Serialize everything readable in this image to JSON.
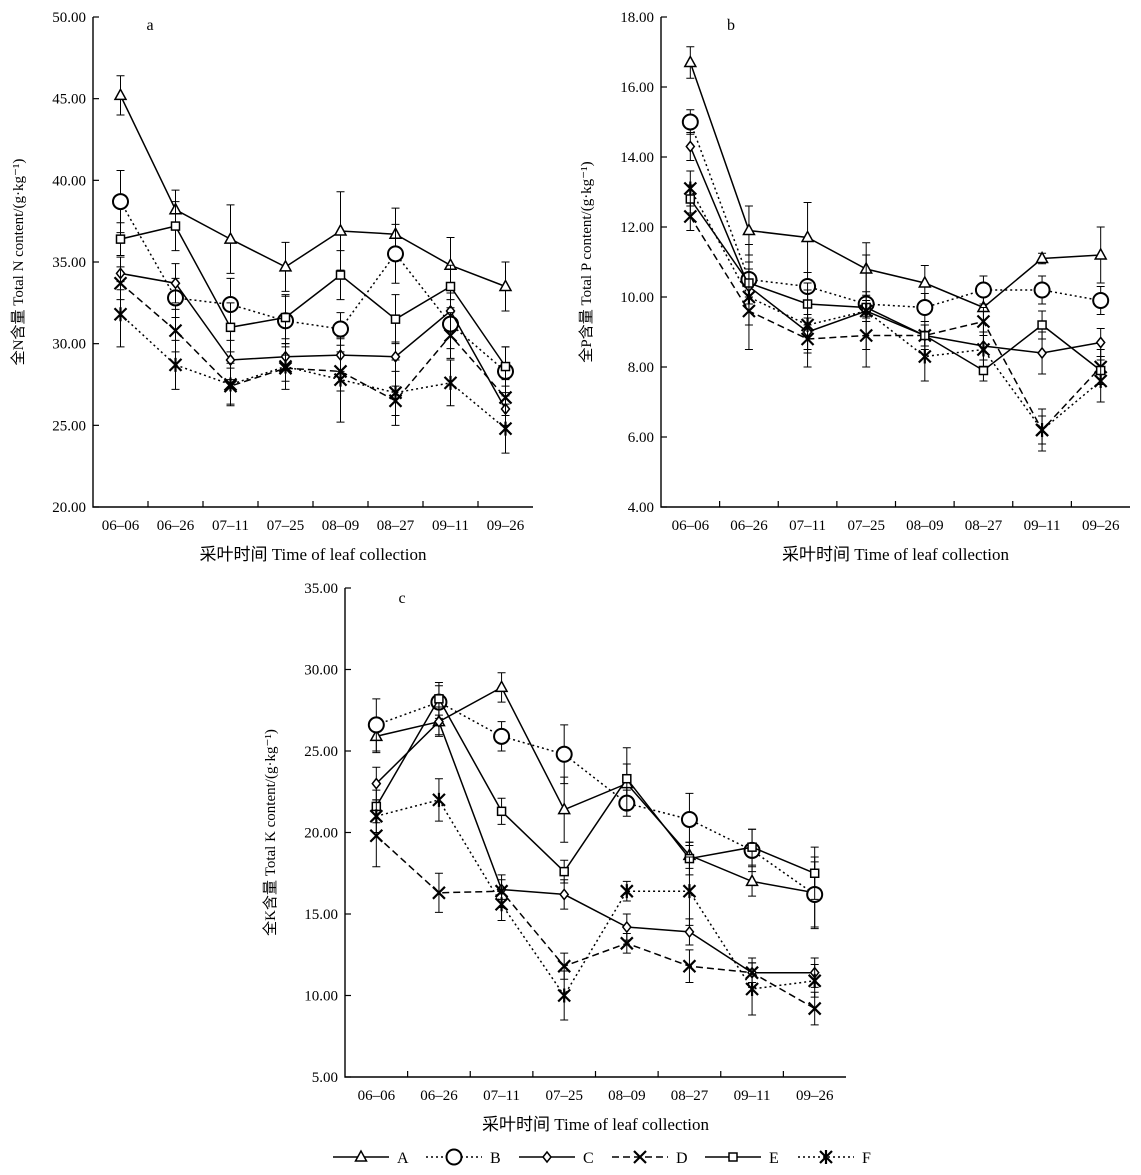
{
  "colors": {
    "ink": "#000000",
    "paper": "#ffffff"
  },
  "legend": [
    "A",
    "B",
    "C",
    "D",
    "E",
    "F"
  ],
  "chart_data": [
    {
      "type": "line",
      "panel_label": "a",
      "title": "",
      "xlabel": "采叶时间 Time of leaf collection",
      "ylabel": "全N含量 Total N content/(g·kg⁻¹)",
      "categories": [
        "06–06",
        "06–26",
        "07–11",
        "07–25",
        "08–09",
        "08–27",
        "09–11",
        "09–26"
      ],
      "ylim": [
        20,
        50
      ],
      "yticks": [
        "20.00",
        "25.00",
        "30.00",
        "35.00",
        "40.00",
        "45.00",
        "50.00"
      ],
      "series": [
        {
          "name": "A",
          "values": [
            45.2,
            38.2,
            36.4,
            34.7,
            36.9,
            36.7,
            34.8,
            33.5
          ],
          "err": [
            1.2,
            1.2,
            2.1,
            1.5,
            2.4,
            1.6,
            1.7,
            1.5
          ]
        },
        {
          "name": "B",
          "values": [
            38.7,
            32.8,
            32.4,
            31.4,
            30.9,
            35.5,
            31.2,
            28.3
          ],
          "err": [
            1.9,
            1.2,
            1.6,
            1.6,
            1.0,
            1.8,
            1.5,
            1.5
          ]
        },
        {
          "name": "C",
          "values": [
            34.3,
            33.7,
            29.0,
            29.2,
            29.3,
            29.2,
            32.0,
            26.0
          ],
          "err": [
            1.0,
            1.2,
            1.2,
            0.8,
            1.0,
            0.9,
            1.3,
            1.0
          ]
        },
        {
          "name": "D",
          "values": [
            33.7,
            30.8,
            27.4,
            28.5,
            28.3,
            26.5,
            30.5,
            26.7
          ],
          "err": [
            1.0,
            1.3,
            1.1,
            0.8,
            1.2,
            0.9,
            1.4,
            1.1
          ]
        },
        {
          "name": "E",
          "values": [
            36.4,
            37.2,
            31.0,
            31.6,
            34.2,
            31.5,
            33.5,
            28.6
          ],
          "err": [
            1.0,
            1.5,
            1.5,
            1.3,
            1.5,
            1.5,
            1.3,
            1.2
          ]
        },
        {
          "name": "F",
          "values": [
            31.8,
            28.7,
            27.5,
            28.6,
            27.8,
            27.0,
            27.6,
            24.8
          ],
          "err": [
            2.0,
            1.5,
            1.3,
            1.4,
            2.6,
            2.0,
            1.4,
            1.5
          ]
        }
      ]
    },
    {
      "type": "line",
      "panel_label": "b",
      "title": "",
      "xlabel": "采叶时间 Time of leaf collection",
      "ylabel": "全P含量 Total P content/(g·kg⁻¹)",
      "categories": [
        "06–06",
        "06–26",
        "07–11",
        "07–25",
        "08–09",
        "08–27",
        "09–11",
        "09–26"
      ],
      "ylim": [
        4,
        18
      ],
      "yticks": [
        "4.00",
        "6.00",
        "8.00",
        "10.00",
        "12.00",
        "14.00",
        "16.00",
        "18.00"
      ],
      "series": [
        {
          "name": "A",
          "values": [
            16.7,
            11.9,
            11.7,
            10.8,
            10.4,
            9.7,
            11.1,
            11.2
          ],
          "err": [
            0.45,
            0.7,
            1.0,
            0.75,
            0.5,
            0.7,
            0.15,
            0.8
          ]
        },
        {
          "name": "B",
          "values": [
            15.0,
            10.5,
            10.3,
            9.8,
            9.7,
            10.2,
            10.2,
            9.9
          ],
          "err": [
            0.35,
            0.5,
            0.4,
            0.35,
            0.4,
            0.4,
            0.4,
            0.4
          ]
        },
        {
          "name": "C",
          "values": [
            14.3,
            10.3,
            9.0,
            9.6,
            8.9,
            8.6,
            8.4,
            8.7
          ],
          "err": [
            0.4,
            0.5,
            0.5,
            0.3,
            0.3,
            0.4,
            0.6,
            0.4
          ]
        },
        {
          "name": "D",
          "values": [
            12.3,
            9.6,
            8.8,
            8.9,
            8.9,
            9.3,
            6.2,
            8.0
          ],
          "err": [
            0.4,
            0.4,
            0.4,
            0.4,
            0.3,
            0.4,
            0.4,
            0.5
          ]
        },
        {
          "name": "E",
          "values": [
            12.8,
            10.4,
            9.8,
            9.7,
            8.9,
            7.9,
            9.2,
            7.9
          ],
          "err": [
            0.4,
            0.4,
            0.4,
            0.3,
            0.4,
            0.3,
            0.4,
            0.4
          ]
        },
        {
          "name": "F",
          "values": [
            13.1,
            10.0,
            9.2,
            9.6,
            8.3,
            8.5,
            6.2,
            7.6
          ],
          "err": [
            0.5,
            1.5,
            1.2,
            1.6,
            0.7,
            0.5,
            0.6,
            0.6
          ]
        }
      ]
    },
    {
      "type": "line",
      "panel_label": "c",
      "title": "",
      "xlabel": "采叶时间 Time of leaf collection",
      "ylabel": "全K含量 Total K content/(g·kg⁻¹)",
      "categories": [
        "06–06",
        "06–26",
        "07–11",
        "07–25",
        "08–09",
        "08–27",
        "09–11",
        "09–26"
      ],
      "ylim": [
        5,
        35
      ],
      "yticks": [
        "5.00",
        "10.00",
        "15.00",
        "20.00",
        "25.00",
        "30.00",
        "35.00"
      ],
      "series": [
        {
          "name": "A",
          "values": [
            25.9,
            26.8,
            28.9,
            21.4,
            23.0,
            18.6,
            17.0,
            16.3
          ],
          "err": [
            1.0,
            0.8,
            0.9,
            2.0,
            1.2,
            0.8,
            0.9,
            2.2
          ]
        },
        {
          "name": "B",
          "values": [
            26.6,
            28.0,
            25.9,
            24.8,
            21.8,
            20.8,
            18.9,
            16.2
          ],
          "err": [
            1.6,
            1.0,
            0.9,
            1.8,
            0.8,
            1.6,
            1.3,
            2.0
          ]
        },
        {
          "name": "C",
          "values": [
            23.0,
            26.8,
            16.5,
            16.2,
            14.2,
            13.9,
            11.4,
            11.4
          ],
          "err": [
            1.0,
            0.9,
            0.6,
            0.9,
            0.8,
            0.8,
            0.6,
            0.9
          ]
        },
        {
          "name": "D",
          "values": [
            19.8,
            16.3,
            16.4,
            11.8,
            13.2,
            11.8,
            11.4,
            9.2
          ],
          "err": [
            1.9,
            1.2,
            1.0,
            0.8,
            0.6,
            1.0,
            0.9,
            1.0
          ]
        },
        {
          "name": "E",
          "values": [
            21.6,
            28.2,
            21.3,
            17.6,
            23.3,
            18.4,
            19.1,
            17.5
          ],
          "err": [
            1.0,
            1.0,
            0.8,
            0.7,
            1.9,
            1.0,
            1.1,
            1.6
          ]
        },
        {
          "name": "F",
          "values": [
            21.0,
            22.0,
            15.6,
            10.0,
            16.4,
            16.4,
            10.4,
            10.9
          ],
          "err": [
            1.0,
            1.3,
            1.0,
            1.5,
            0.6,
            2.1,
            1.6,
            1.0
          ]
        }
      ]
    }
  ]
}
